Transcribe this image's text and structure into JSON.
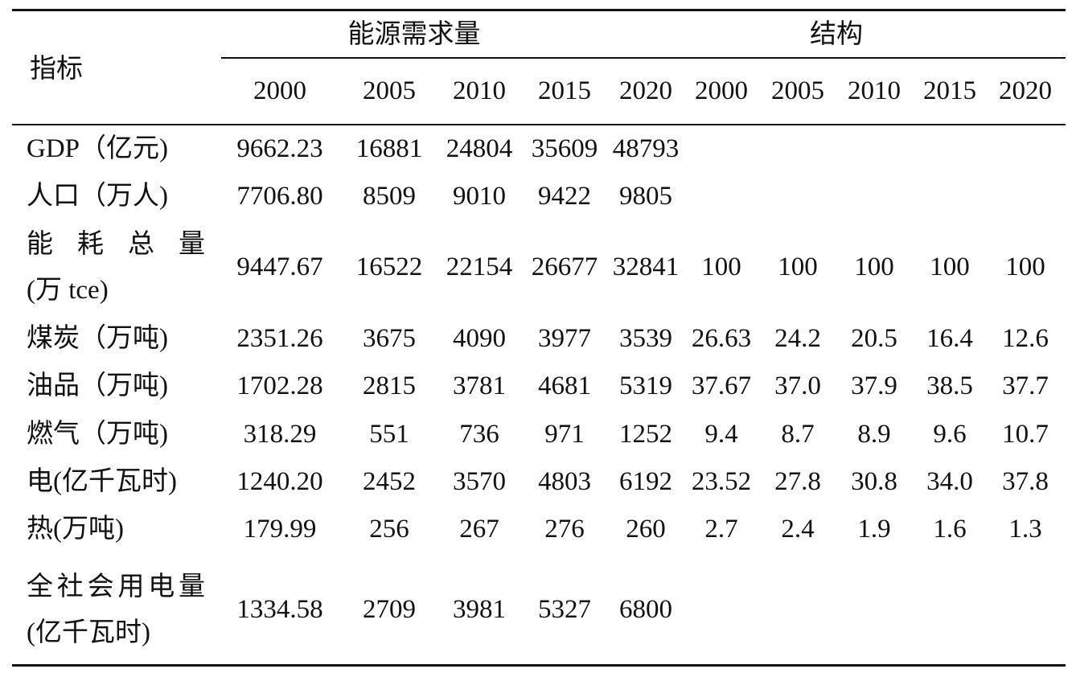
{
  "header": {
    "indicator": "指标",
    "group_demand": "能源需求量",
    "group_structure": "结构",
    "demand_years": [
      "2000",
      "2005",
      "2010",
      "2015",
      "2020"
    ],
    "structure_years": [
      "2000",
      "2005",
      "2010",
      "2015",
      "2020"
    ]
  },
  "table": {
    "rows": [
      {
        "label": [
          "GDP（亿元)"
        ],
        "demand": [
          "9662.23",
          "16881",
          "24804",
          "35609",
          "48793"
        ]
      },
      {
        "label": [
          "人口（万人)"
        ],
        "demand": [
          "7706.80",
          "8509",
          "9010",
          "9422",
          "9805"
        ]
      },
      {
        "label": [
          "能耗总量",
          "(万 tce)"
        ],
        "demand": [
          "9447.67",
          "16522",
          "22154",
          "26677",
          "32841"
        ],
        "structure": [
          "100",
          "100",
          "100",
          "100",
          "100"
        ]
      },
      {
        "label": [
          "煤炭（万吨)"
        ],
        "demand": [
          "2351.26",
          "3675",
          "4090",
          "3977",
          "3539"
        ],
        "structure": [
          "26.63",
          "24.2",
          "20.5",
          "16.4",
          "12.6"
        ]
      },
      {
        "label": [
          "油品（万吨)"
        ],
        "demand": [
          "1702.28",
          "2815",
          "3781",
          "4681",
          "5319"
        ],
        "structure": [
          "37.67",
          "37.0",
          "37.9",
          "38.5",
          "37.7"
        ]
      },
      {
        "label": [
          "燃气（万吨)"
        ],
        "demand": [
          "318.29",
          "551",
          "736",
          "971",
          "1252"
        ],
        "structure": [
          "9.4",
          "8.7",
          "8.9",
          "9.6",
          "10.7"
        ]
      },
      {
        "label": [
          "电(亿千瓦时)"
        ],
        "demand": [
          "1240.20",
          "2452",
          "3570",
          "4803",
          "6192"
        ],
        "structure": [
          "23.52",
          "27.8",
          "30.8",
          "34.0",
          "37.8"
        ]
      },
      {
        "label": [
          "热(万吨)"
        ],
        "demand": [
          "179.99",
          "256",
          "267",
          "276",
          "260"
        ],
        "structure": [
          "2.7",
          "2.4",
          "1.9",
          "1.6",
          "1.3"
        ]
      },
      {
        "label": [
          "全社会用电量",
          "(亿千瓦时)"
        ],
        "demand": [
          "1334.58",
          "2709",
          "3981",
          "5327",
          "6800"
        ]
      }
    ]
  }
}
